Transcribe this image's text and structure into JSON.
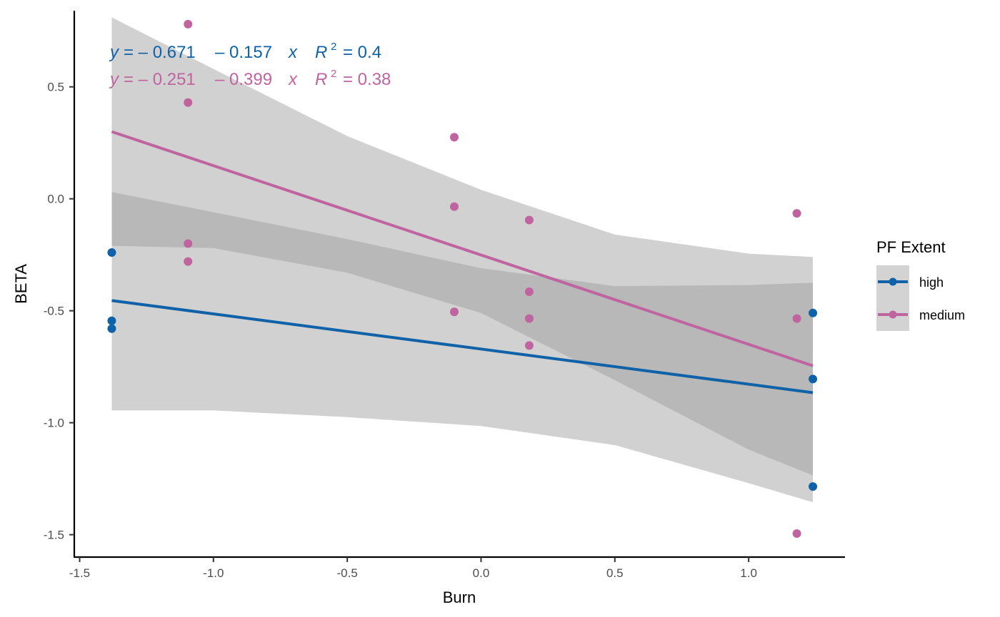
{
  "chart_data": {
    "type": "scatter",
    "title": "",
    "xlabel": "Burn",
    "ylabel": "BETA",
    "xlim": [
      -1.52,
      1.36
    ],
    "ylim": [
      -1.6,
      0.84
    ],
    "xticks": [
      -1.5,
      -1.0,
      -0.5,
      0.0,
      0.5,
      1.0
    ],
    "xtick_labels": [
      "-1.5",
      "-1.0",
      "-0.5",
      "0.0",
      "0.5",
      "1.0"
    ],
    "yticks": [
      0.5,
      0.0,
      -0.5,
      -1.0,
      -1.5
    ],
    "ytick_labels": [
      "0.5",
      "0.0",
      "-0.5",
      "-1.0",
      "-1.5"
    ],
    "grid": false,
    "legend": {
      "title": "PF Extent",
      "position": "right"
    },
    "series": [
      {
        "name": "high",
        "color": "#0f62a8",
        "points": [
          {
            "x": -1.38,
            "y": -0.24
          },
          {
            "x": -1.38,
            "y": -0.545
          },
          {
            "x": -1.38,
            "y": -0.58
          },
          {
            "x": 1.24,
            "y": -0.51
          },
          {
            "x": 1.24,
            "y": -0.805
          },
          {
            "x": 1.24,
            "y": -1.285
          }
        ],
        "fit": {
          "intercept": -0.671,
          "slope": -0.157,
          "x_range": [
            -1.38,
            1.24
          ]
        },
        "band": {
          "x": [
            -1.38,
            -1.0,
            -0.5,
            0.0,
            0.5,
            1.0,
            1.24
          ],
          "lower": [
            -0.945,
            -0.945,
            -0.975,
            -1.015,
            -1.1,
            -1.27,
            -1.355
          ],
          "upper": [
            0.03,
            -0.06,
            -0.18,
            -0.31,
            -0.39,
            -0.385,
            -0.375
          ]
        },
        "equation": {
          "y_label": "y",
          "intercept": "= – 0.671",
          "slope": "– 0.157",
          "x_label": "x",
          "r_label": "R",
          "r_sup": "2",
          "r_value": "= 0.4"
        }
      },
      {
        "name": "medium",
        "color": "#c0649f",
        "points": [
          {
            "x": -1.095,
            "y": 0.78
          },
          {
            "x": -1.095,
            "y": 0.43
          },
          {
            "x": -1.095,
            "y": -0.2
          },
          {
            "x": -1.095,
            "y": -0.28
          },
          {
            "x": -0.1,
            "y": 0.275
          },
          {
            "x": -0.1,
            "y": -0.035
          },
          {
            "x": -0.1,
            "y": -0.505
          },
          {
            "x": 0.18,
            "y": -0.095
          },
          {
            "x": 0.18,
            "y": -0.415
          },
          {
            "x": 0.18,
            "y": -0.535
          },
          {
            "x": 0.18,
            "y": -0.655
          },
          {
            "x": 1.18,
            "y": -0.065
          },
          {
            "x": 1.18,
            "y": -0.535
          },
          {
            "x": 1.18,
            "y": -1.495
          }
        ],
        "fit": {
          "intercept": -0.251,
          "slope": -0.399,
          "x_range": [
            -1.38,
            1.24
          ]
        },
        "band": {
          "x": [
            -1.38,
            -1.0,
            -0.5,
            0.0,
            0.5,
            1.0,
            1.24
          ],
          "lower": [
            -0.21,
            -0.22,
            -0.33,
            -0.51,
            -0.81,
            -1.12,
            -1.235
          ],
          "upper": [
            0.81,
            0.58,
            0.28,
            0.04,
            -0.16,
            -0.245,
            -0.26
          ]
        },
        "equation": {
          "y_label": "y",
          "intercept": "= – 0.251",
          "slope": "– 0.399",
          "x_label": "x",
          "r_label": "R",
          "r_sup": "2",
          "r_value": "= 0.38"
        }
      }
    ]
  }
}
